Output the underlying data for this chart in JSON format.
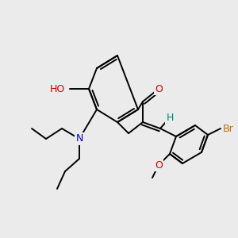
{
  "background_color": "#ebebeb",
  "figsize": [
    3.0,
    3.0
  ],
  "dpi": 100,
  "bond_color": "#000000",
  "bond_width": 1.4,
  "colors": {
    "O": "#cc0000",
    "N": "#0000cc",
    "Br": "#cc6600",
    "H": "#008080"
  }
}
